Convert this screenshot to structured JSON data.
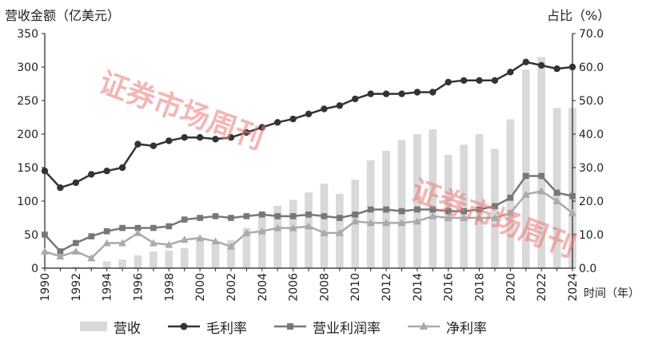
{
  "units": {
    "left": "营收金额（亿美元）",
    "right": "占比（%）",
    "x": "时间（年）"
  },
  "legend": {
    "revenue": "营收",
    "gross": "毛利率",
    "operating": "营业利润率",
    "net": "净利率"
  },
  "watermark": "证券市场周刊",
  "chart_data": {
    "type": "bar+line",
    "x": [
      1990,
      1991,
      1992,
      1993,
      1994,
      1995,
      1996,
      1997,
      1998,
      1999,
      2000,
      2001,
      2002,
      2003,
      2004,
      2005,
      2006,
      2007,
      2008,
      2009,
      2010,
      2011,
      2012,
      2013,
      2014,
      2015,
      2016,
      2017,
      2018,
      2019,
      2020,
      2021,
      2022,
      2023,
      2024
    ],
    "x_tick_labels": [
      "1990",
      "1992",
      "1994",
      "1996",
      "1998",
      "2000",
      "2002",
      "2004",
      "2006",
      "2008",
      "2010",
      "2012",
      "2014",
      "2016",
      "2018",
      "2020",
      "2022",
      "2024"
    ],
    "y_left": {
      "label": "营收金额（亿美元）",
      "range": [
        0,
        350
      ],
      "ticks": [
        "0",
        "50",
        "100",
        "150",
        "200",
        "250",
        "300",
        "350"
      ]
    },
    "y_right": {
      "label": "占比（%）",
      "range": [
        0,
        70
      ],
      "ticks": [
        "0.0",
        "10.0",
        "20.0",
        "30.0",
        "40.0",
        "50.0",
        "60.0",
        "70.0"
      ]
    },
    "x_label": "时间（年）",
    "grid": false,
    "legend_position": "bottom",
    "colors": {
      "bar": "#d9d9d9",
      "gross": "#333333",
      "operating": "#777777",
      "net": "#aaaaaa"
    },
    "series": [
      {
        "name": "营收",
        "type": "bar",
        "axis": "left",
        "values": [
          1,
          1,
          2,
          2,
          10,
          13,
          19,
          25,
          26,
          30,
          42,
          35,
          42,
          60,
          83,
          93,
          102,
          113,
          126,
          111,
          132,
          161,
          175,
          191,
          200,
          207,
          169,
          184,
          200,
          178,
          222,
          296,
          315,
          239,
          239
        ]
      },
      {
        "name": "毛利率",
        "type": "line",
        "marker": "circle",
        "axis": "right",
        "values": [
          29,
          24,
          25.5,
          28,
          29,
          30,
          37,
          36.5,
          38,
          39,
          39,
          38.5,
          39,
          40.5,
          42,
          43.5,
          44.5,
          46,
          47.5,
          48.5,
          50.5,
          52,
          52,
          52,
          52.5,
          52.5,
          55.5,
          56,
          56,
          56,
          58.5,
          61.5,
          60.5,
          59.5,
          60
        ]
      },
      {
        "name": "营业利润率",
        "type": "line",
        "marker": "square",
        "axis": "right",
        "values": [
          10,
          5,
          7.5,
          9.5,
          11,
          12,
          12,
          12,
          12.5,
          14.5,
          15,
          15.5,
          15,
          15.5,
          16,
          15.5,
          15.5,
          16,
          15.5,
          15,
          16,
          17.5,
          17.5,
          17,
          17.5,
          17.5,
          17,
          17,
          17.5,
          18.5,
          21,
          27.5,
          27.5,
          22.5,
          21.5
        ]
      },
      {
        "name": "净利率",
        "type": "line",
        "marker": "triangle",
        "axis": "right",
        "values": [
          5,
          3.5,
          5,
          3,
          7.5,
          7.5,
          10.5,
          7.5,
          7,
          8.5,
          9,
          8,
          6.5,
          10.5,
          11,
          12,
          12,
          12.5,
          10.5,
          10.5,
          14,
          13.5,
          13.5,
          13.5,
          14,
          15.5,
          15,
          15,
          15,
          15,
          16.5,
          22,
          23,
          20,
          16.5
        ]
      }
    ]
  }
}
